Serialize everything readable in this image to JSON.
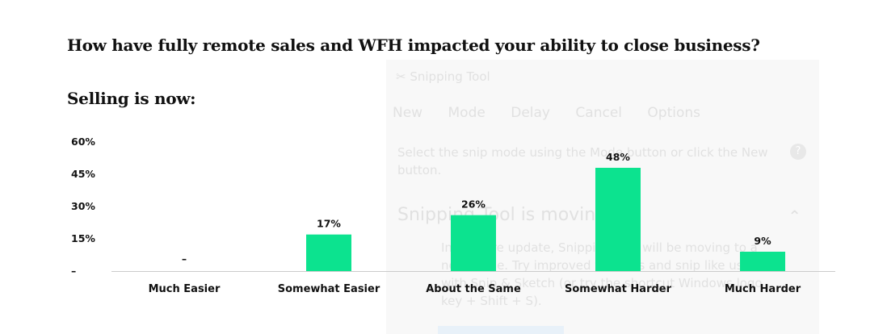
{
  "question": "How have fully remote sales and WFH impacted your ability to close business?",
  "subtitle": "Selling is now:",
  "colors": {
    "bar": "#0ce38f",
    "axis": "#cccccc",
    "text": "#111111"
  },
  "overlay": {
    "title": "Snipping Tool",
    "toolbar": [
      "New",
      "Mode",
      "Delay",
      "Cancel",
      "Options"
    ],
    "hint": "Select the snip mode using the Mode button or click the New button.",
    "help_icon": "?",
    "moving_title": "Snipping Tool is moving...",
    "body": "In a future update, Snipping Tool will be moving to a new home. Try improved features and snip like usual with Snip & Sketch (or try the shortcut Windows logo key + Shift + S)."
  },
  "chart_data": {
    "type": "bar",
    "title": "Selling is now:",
    "categories": [
      "Much Easier",
      "Somewhat Easier",
      "About the Same",
      "Somewhat Harder",
      "Much Harder"
    ],
    "values": [
      0,
      17,
      26,
      48,
      9
    ],
    "labels": [
      "–",
      "17%",
      "26%",
      "48%",
      "9%"
    ],
    "y_ticks": [
      "60%",
      "45%",
      "30%",
      "15%",
      "–"
    ],
    "y_tick_values": [
      60,
      45,
      30,
      15,
      0
    ],
    "ylim": [
      0,
      60
    ],
    "xlabel": "",
    "ylabel": "",
    "grid": false,
    "legend": "none"
  }
}
